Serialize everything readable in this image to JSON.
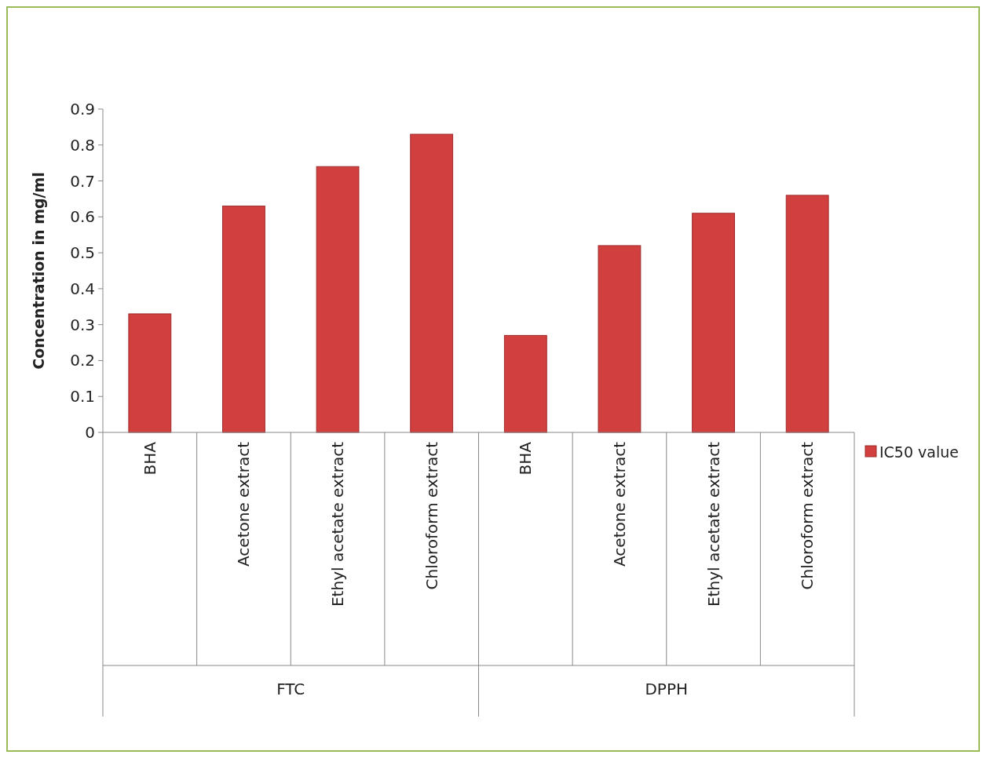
{
  "chart_data": {
    "type": "bar",
    "ylabel": "Concentration in mg/ml",
    "categories": [
      "BHA",
      "Acetone extract",
      "Ethyl acetate extract",
      "Chloroform extract",
      "BHA",
      "Acetone extract",
      "Ethyl acetate extract",
      "Chloroform extract"
    ],
    "series": [
      {
        "name": "IC50 value",
        "color": "#d23f3f",
        "values": [
          0.33,
          0.63,
          0.74,
          0.83,
          0.27,
          0.52,
          0.61,
          0.66
        ]
      }
    ],
    "annotations": [
      "FTC",
      "DPPH"
    ],
    "ylim": [
      0,
      0.9
    ],
    "yticks": [
      0,
      0.1,
      0.2,
      0.3,
      0.4,
      0.5,
      0.6,
      0.7,
      0.8,
      0.9
    ],
    "grid": false,
    "legend": "right"
  }
}
